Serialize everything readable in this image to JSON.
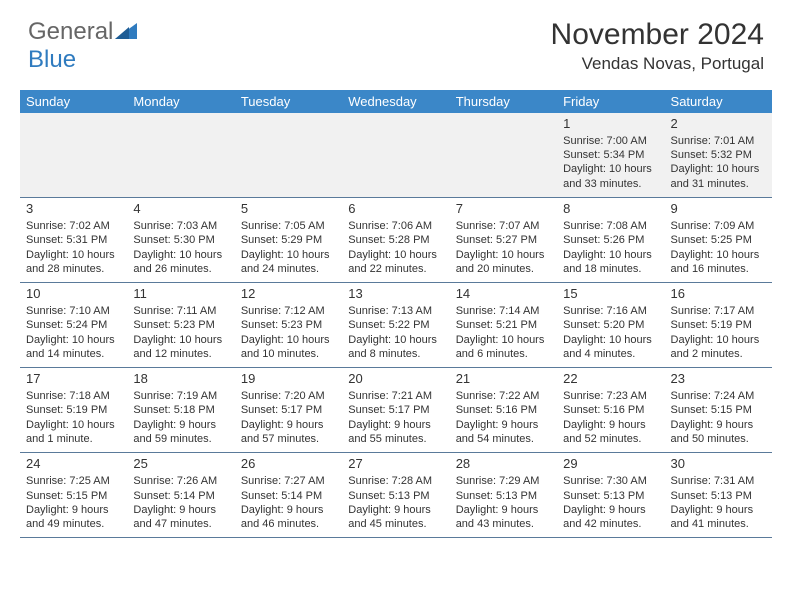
{
  "logo": {
    "text1": "General",
    "text2": "Blue"
  },
  "title": "November 2024",
  "location": "Vendas Novas, Portugal",
  "colors": {
    "header_bg": "#3b87c8",
    "header_text": "#ffffff",
    "row_divider": "#5a7a9a",
    "logo_blue": "#2f7bbf",
    "text": "#333333",
    "spacer_bg": "#f1f1f1"
  },
  "weekdays": [
    "Sunday",
    "Monday",
    "Tuesday",
    "Wednesday",
    "Thursday",
    "Friday",
    "Saturday"
  ],
  "weeks": [
    [
      null,
      null,
      null,
      null,
      null,
      {
        "n": "1",
        "sr": "Sunrise: 7:00 AM",
        "ss": "Sunset: 5:34 PM",
        "d1": "Daylight: 10 hours",
        "d2": "and 33 minutes."
      },
      {
        "n": "2",
        "sr": "Sunrise: 7:01 AM",
        "ss": "Sunset: 5:32 PM",
        "d1": "Daylight: 10 hours",
        "d2": "and 31 minutes."
      }
    ],
    [
      {
        "n": "3",
        "sr": "Sunrise: 7:02 AM",
        "ss": "Sunset: 5:31 PM",
        "d1": "Daylight: 10 hours",
        "d2": "and 28 minutes."
      },
      {
        "n": "4",
        "sr": "Sunrise: 7:03 AM",
        "ss": "Sunset: 5:30 PM",
        "d1": "Daylight: 10 hours",
        "d2": "and 26 minutes."
      },
      {
        "n": "5",
        "sr": "Sunrise: 7:05 AM",
        "ss": "Sunset: 5:29 PM",
        "d1": "Daylight: 10 hours",
        "d2": "and 24 minutes."
      },
      {
        "n": "6",
        "sr": "Sunrise: 7:06 AM",
        "ss": "Sunset: 5:28 PM",
        "d1": "Daylight: 10 hours",
        "d2": "and 22 minutes."
      },
      {
        "n": "7",
        "sr": "Sunrise: 7:07 AM",
        "ss": "Sunset: 5:27 PM",
        "d1": "Daylight: 10 hours",
        "d2": "and 20 minutes."
      },
      {
        "n": "8",
        "sr": "Sunrise: 7:08 AM",
        "ss": "Sunset: 5:26 PM",
        "d1": "Daylight: 10 hours",
        "d2": "and 18 minutes."
      },
      {
        "n": "9",
        "sr": "Sunrise: 7:09 AM",
        "ss": "Sunset: 5:25 PM",
        "d1": "Daylight: 10 hours",
        "d2": "and 16 minutes."
      }
    ],
    [
      {
        "n": "10",
        "sr": "Sunrise: 7:10 AM",
        "ss": "Sunset: 5:24 PM",
        "d1": "Daylight: 10 hours",
        "d2": "and 14 minutes."
      },
      {
        "n": "11",
        "sr": "Sunrise: 7:11 AM",
        "ss": "Sunset: 5:23 PM",
        "d1": "Daylight: 10 hours",
        "d2": "and 12 minutes."
      },
      {
        "n": "12",
        "sr": "Sunrise: 7:12 AM",
        "ss": "Sunset: 5:23 PM",
        "d1": "Daylight: 10 hours",
        "d2": "and 10 minutes."
      },
      {
        "n": "13",
        "sr": "Sunrise: 7:13 AM",
        "ss": "Sunset: 5:22 PM",
        "d1": "Daylight: 10 hours",
        "d2": "and 8 minutes."
      },
      {
        "n": "14",
        "sr": "Sunrise: 7:14 AM",
        "ss": "Sunset: 5:21 PM",
        "d1": "Daylight: 10 hours",
        "d2": "and 6 minutes."
      },
      {
        "n": "15",
        "sr": "Sunrise: 7:16 AM",
        "ss": "Sunset: 5:20 PM",
        "d1": "Daylight: 10 hours",
        "d2": "and 4 minutes."
      },
      {
        "n": "16",
        "sr": "Sunrise: 7:17 AM",
        "ss": "Sunset: 5:19 PM",
        "d1": "Daylight: 10 hours",
        "d2": "and 2 minutes."
      }
    ],
    [
      {
        "n": "17",
        "sr": "Sunrise: 7:18 AM",
        "ss": "Sunset: 5:19 PM",
        "d1": "Daylight: 10 hours",
        "d2": "and 1 minute."
      },
      {
        "n": "18",
        "sr": "Sunrise: 7:19 AM",
        "ss": "Sunset: 5:18 PM",
        "d1": "Daylight: 9 hours",
        "d2": "and 59 minutes."
      },
      {
        "n": "19",
        "sr": "Sunrise: 7:20 AM",
        "ss": "Sunset: 5:17 PM",
        "d1": "Daylight: 9 hours",
        "d2": "and 57 minutes."
      },
      {
        "n": "20",
        "sr": "Sunrise: 7:21 AM",
        "ss": "Sunset: 5:17 PM",
        "d1": "Daylight: 9 hours",
        "d2": "and 55 minutes."
      },
      {
        "n": "21",
        "sr": "Sunrise: 7:22 AM",
        "ss": "Sunset: 5:16 PM",
        "d1": "Daylight: 9 hours",
        "d2": "and 54 minutes."
      },
      {
        "n": "22",
        "sr": "Sunrise: 7:23 AM",
        "ss": "Sunset: 5:16 PM",
        "d1": "Daylight: 9 hours",
        "d2": "and 52 minutes."
      },
      {
        "n": "23",
        "sr": "Sunrise: 7:24 AM",
        "ss": "Sunset: 5:15 PM",
        "d1": "Daylight: 9 hours",
        "d2": "and 50 minutes."
      }
    ],
    [
      {
        "n": "24",
        "sr": "Sunrise: 7:25 AM",
        "ss": "Sunset: 5:15 PM",
        "d1": "Daylight: 9 hours",
        "d2": "and 49 minutes."
      },
      {
        "n": "25",
        "sr": "Sunrise: 7:26 AM",
        "ss": "Sunset: 5:14 PM",
        "d1": "Daylight: 9 hours",
        "d2": "and 47 minutes."
      },
      {
        "n": "26",
        "sr": "Sunrise: 7:27 AM",
        "ss": "Sunset: 5:14 PM",
        "d1": "Daylight: 9 hours",
        "d2": "and 46 minutes."
      },
      {
        "n": "27",
        "sr": "Sunrise: 7:28 AM",
        "ss": "Sunset: 5:13 PM",
        "d1": "Daylight: 9 hours",
        "d2": "and 45 minutes."
      },
      {
        "n": "28",
        "sr": "Sunrise: 7:29 AM",
        "ss": "Sunset: 5:13 PM",
        "d1": "Daylight: 9 hours",
        "d2": "and 43 minutes."
      },
      {
        "n": "29",
        "sr": "Sunrise: 7:30 AM",
        "ss": "Sunset: 5:13 PM",
        "d1": "Daylight: 9 hours",
        "d2": "and 42 minutes."
      },
      {
        "n": "30",
        "sr": "Sunrise: 7:31 AM",
        "ss": "Sunset: 5:13 PM",
        "d1": "Daylight: 9 hours",
        "d2": "and 41 minutes."
      }
    ]
  ]
}
